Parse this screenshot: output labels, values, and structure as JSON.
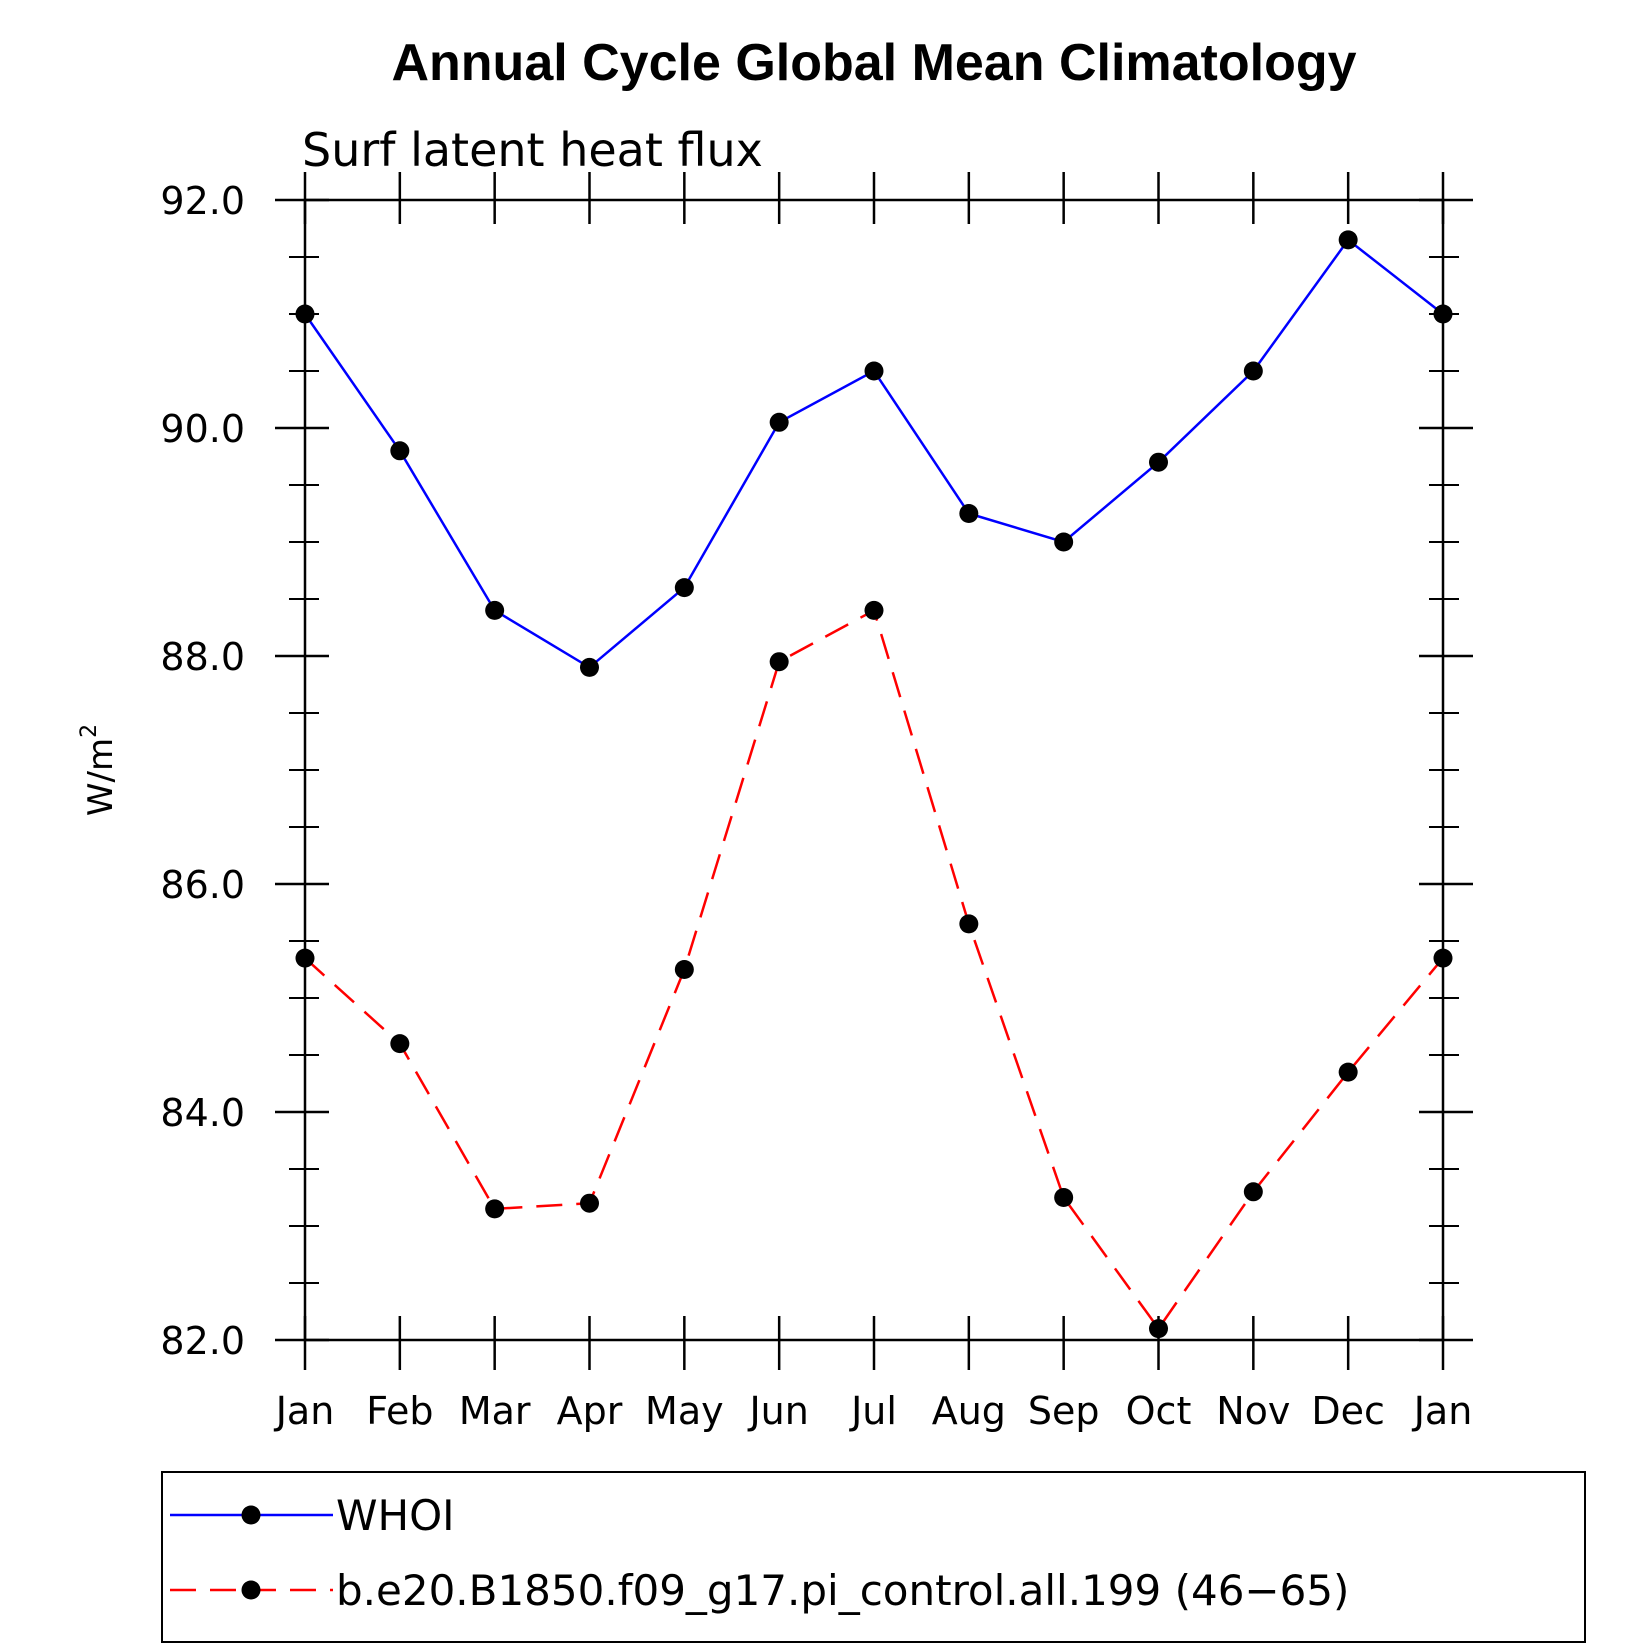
{
  "chart_data": {
    "type": "line",
    "title": "Annual Cycle Global Mean Climatology",
    "subtitle": "Surf latent heat flux",
    "ylabel": "W/m",
    "ylabel_superscript": "2",
    "categories": [
      "Jan",
      "Feb",
      "Mar",
      "Apr",
      "May",
      "Jun",
      "Jul",
      "Aug",
      "Sep",
      "Oct",
      "Nov",
      "Dec",
      "Jan"
    ],
    "ylim": [
      82.0,
      92.0
    ],
    "yticks": [
      "82.0",
      "84.0",
      "86.0",
      "88.0",
      "90.0",
      "92.0"
    ],
    "series": [
      {
        "name": "WHOI",
        "color": "#0000ff",
        "dash": "solid",
        "values": [
          91.0,
          89.8,
          88.4,
          87.9,
          88.6,
          90.05,
          90.5,
          89.25,
          89.0,
          89.7,
          90.5,
          91.65,
          91.0
        ]
      },
      {
        "name": "b.e20.B1850.f09_g17.pi_control.all.199 (46−65)",
        "color": "#ff0000",
        "dash": "dashed",
        "values": [
          85.35,
          84.6,
          83.15,
          83.2,
          85.25,
          87.95,
          88.4,
          85.65,
          83.25,
          82.1,
          83.3,
          84.35,
          85.35
        ]
      }
    ],
    "legend_position": "bottom"
  }
}
